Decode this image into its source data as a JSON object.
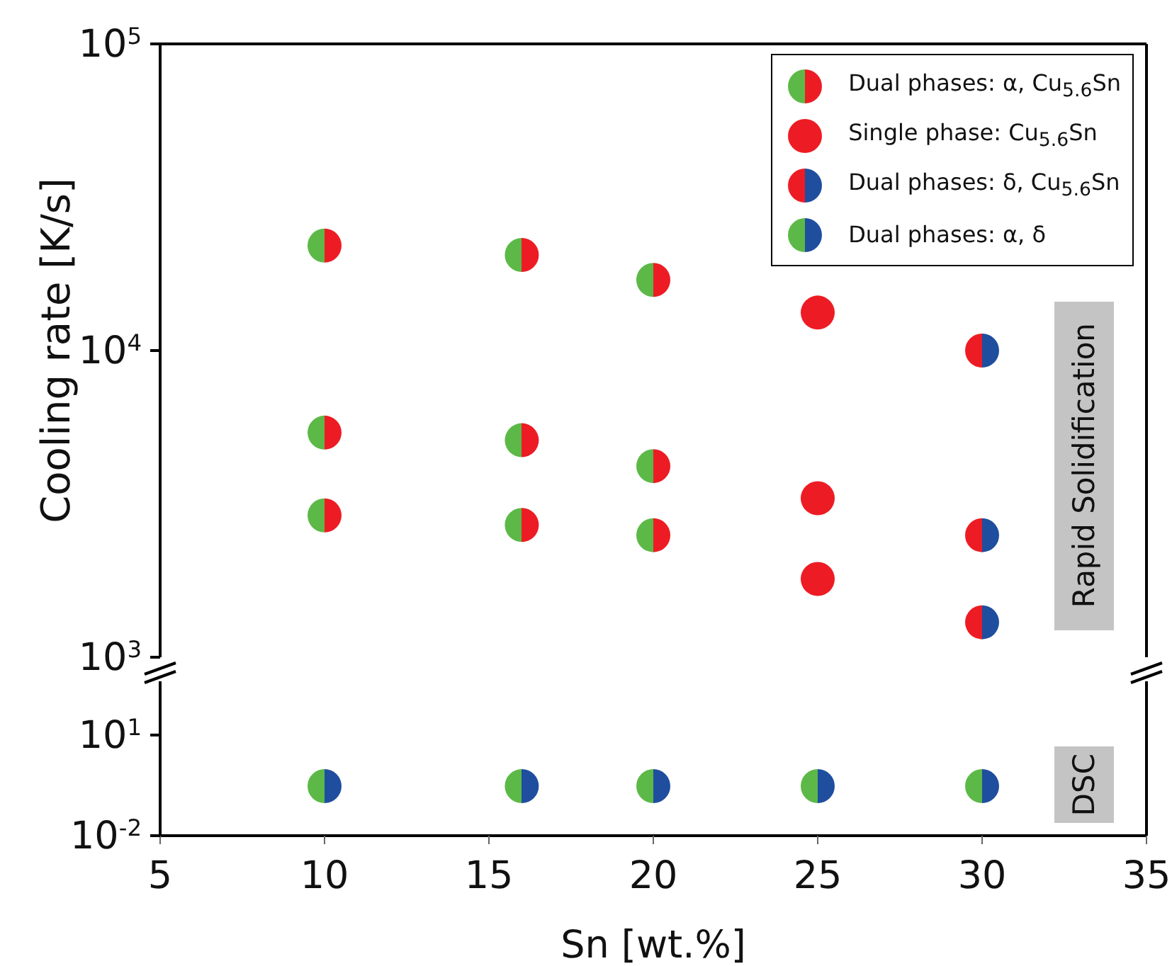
{
  "chart_data": [
    {
      "type": "scatter",
      "ylabel": "Cooling rate [K/s]",
      "marker": "circle",
      "legend": "top right",
      "grid": false,
      "tick_labels": "y",
      "log": "y",
      "xlim": [
        5,
        35
      ],
      "xticks": [
        5,
        10,
        15,
        20,
        25,
        30,
        35
      ],
      "ylim": [
        1000,
        100000
      ],
      "yticks": [
        {
          "value": 1000,
          "label": "10$^{3}$"
        },
        {
          "value": 10000,
          "label": "10$^{4}$"
        },
        {
          "value": 100000,
          "label": "10$^{5}$"
        }
      ],
      "annotations": [
        "Rapid Solidification"
      ],
      "series": [
        {
          "name": "Dual phases: α, Cu$_{5.6}$Sn",
          "color": "#5cb947",
          "colors": [
            "#ed1c24",
            "#ed1c24",
            "#ed1c24",
            "#ed1c24",
            "#ed1c24",
            "#ed1c24",
            "#ed1c24",
            "#ed1c24",
            "#ed1c24"
          ],
          "x": [
            10,
            10,
            10,
            16,
            16,
            16,
            20,
            20,
            20
          ],
          "values": [
            22000,
            5400,
            2900,
            20500,
            5100,
            2700,
            17000,
            4200,
            2500
          ]
        },
        {
          "name": "Single phase: Cu$_{5.6}$Sn",
          "color": "#ed1c24",
          "x": [
            25,
            25,
            25
          ],
          "values": [
            13300,
            3300,
            1800
          ]
        },
        {
          "name": "Dual phases: δ, Cu$_{5.6}$Sn",
          "color": "#ed1c24",
          "colors": [
            "#1f4e9f",
            "#1f4e9f",
            "#1f4e9f"
          ],
          "x": [
            30,
            30,
            30
          ],
          "values": [
            10000,
            2500,
            1300
          ]
        }
      ]
    },
    {
      "type": "scatter",
      "xlabel": "Sn [wt.%]",
      "marker": "circle",
      "grid": false,
      "log": "y",
      "xlim": [
        5,
        35
      ],
      "xticks": [
        5,
        10,
        15,
        20,
        25,
        30,
        35
      ],
      "ylim": [
        0.01,
        400
      ],
      "yticks": [
        {
          "value": 0.01,
          "label": "10$^{-2}$"
        },
        {
          "value": 10,
          "label": "10$^{1}$"
        }
      ],
      "annotations": [
        "DSC"
      ],
      "series": [
        {
          "name": "Dual phases: α, δ",
          "color": "#5cb947",
          "colors": [
            "#1f4e9f",
            "#1f4e9f",
            "#1f4e9f",
            "#1f4e9f",
            "#1f4e9f"
          ],
          "x": [
            10,
            16,
            20,
            25,
            30
          ],
          "values": [
            0.3,
            0.3,
            0.3,
            0.3,
            0.3
          ]
        }
      ]
    }
  ]
}
